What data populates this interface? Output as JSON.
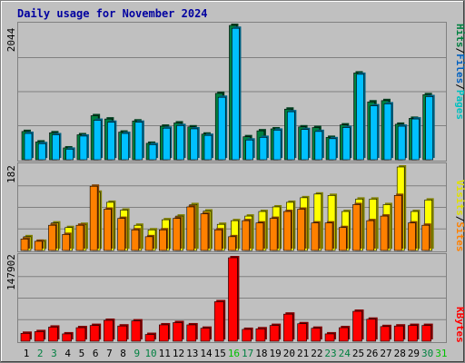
{
  "title": "Daily usage for November 2024",
  "colors": {
    "background": "#C0C0C0",
    "grid": "#808080",
    "title": "#0000A0",
    "hits": "#008040",
    "files": "#00C0FF",
    "pages": "#00C0C0",
    "visits": "#FFFF00",
    "sites": "#FF8000",
    "kbytes": "#FF0000",
    "weekend_day": "#008040",
    "weekday_day": "#000000",
    "current_day": "#00C000"
  },
  "chart_data": [
    {
      "type": "bar",
      "title": "Daily usage for November 2024",
      "max_label": "2044",
      "ylim": [
        0,
        2044
      ],
      "legend": [
        "Pages",
        "/",
        "Files",
        "/",
        "Hits"
      ],
      "categories": [
        "1",
        "2",
        "3",
        "4",
        "5",
        "6",
        "7",
        "8",
        "9",
        "10",
        "11",
        "12",
        "13",
        "14",
        "15",
        "16",
        "17",
        "18",
        "19",
        "20",
        "21",
        "22",
        "23",
        "24",
        "25",
        "26",
        "27",
        "28",
        "29",
        "30",
        "31"
      ],
      "series": [
        {
          "name": "Hits",
          "values": [
            430,
            270,
            410,
            180,
            380,
            670,
            620,
            420,
            590,
            250,
            510,
            560,
            500,
            390,
            1010,
            2044,
            350,
            440,
            470,
            770,
            500,
            490,
            340,
            530,
            1320,
            880,
            900,
            540,
            630,
            990,
            0
          ]
        },
        {
          "name": "Files",
          "values": [
            400,
            245,
            380,
            160,
            360,
            600,
            570,
            400,
            570,
            230,
            480,
            520,
            470,
            370,
            950,
            2000,
            300,
            340,
            450,
            730,
            460,
            430,
            320,
            490,
            1300,
            820,
            850,
            510,
            620,
            960,
            0
          ]
        }
      ]
    },
    {
      "type": "bar",
      "max_label": "182",
      "ylim": [
        0,
        182
      ],
      "legend": [
        "Sites",
        "/",
        "Visits"
      ],
      "series": [
        {
          "name": "Visits",
          "values": [
            30,
            20,
            60,
            50,
            57,
            127,
            105,
            88,
            55,
            45,
            67,
            75,
            100,
            86,
            57,
            65,
            75,
            85,
            95,
            105,
            115,
            123,
            120,
            85,
            112,
            112,
            100,
            182,
            85,
            110,
            0
          ]
        },
        {
          "name": "Sites",
          "values": [
            25,
            20,
            55,
            35,
            55,
            140,
            90,
            70,
            45,
            30,
            45,
            70,
            95,
            80,
            45,
            30,
            65,
            60,
            70,
            85,
            90,
            60,
            60,
            50,
            100,
            65,
            75,
            120,
            60,
            55,
            0
          ]
        }
      ]
    },
    {
      "type": "bar",
      "max_label": "147902",
      "ylim": [
        0,
        147902
      ],
      "legend": [
        "KBytes"
      ],
      "series": [
        {
          "name": "KBytes",
          "values": [
            14000,
            17000,
            25000,
            13000,
            24000,
            28000,
            37000,
            27000,
            36000,
            12000,
            29000,
            33000,
            29000,
            23000,
            70000,
            147902,
            21000,
            22000,
            28000,
            48000,
            31000,
            23000,
            13000,
            24000,
            53000,
            39000,
            26000,
            27000,
            28000,
            28000,
            0
          ]
        }
      ]
    }
  ]
}
